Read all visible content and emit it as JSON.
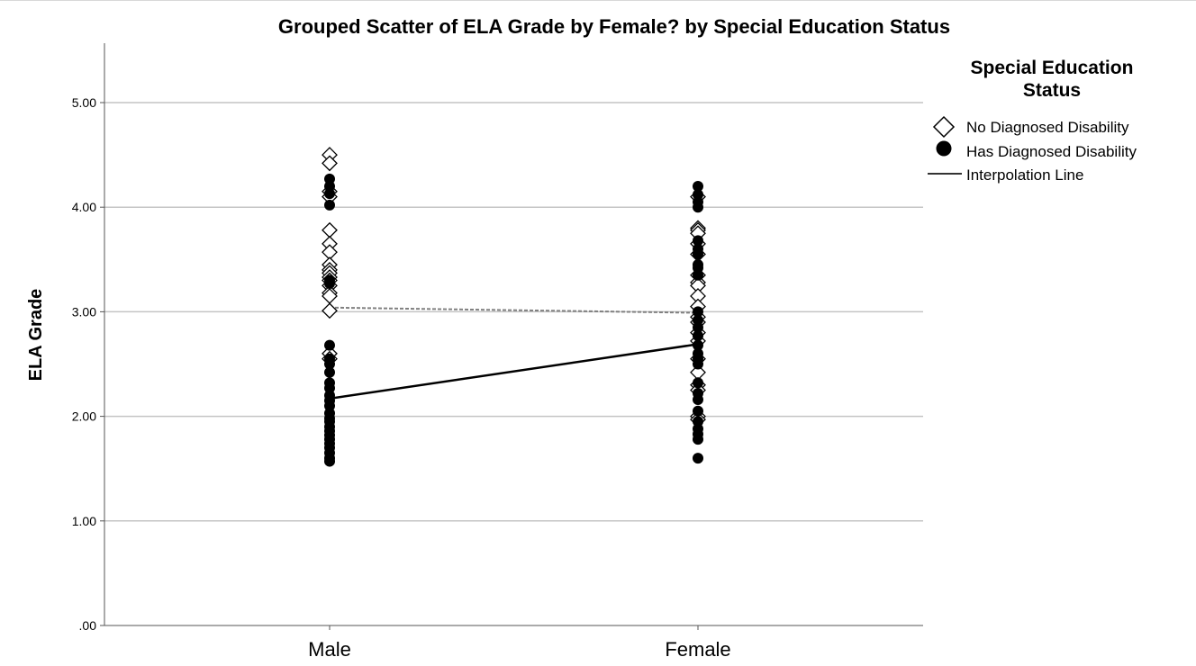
{
  "chart_data": {
    "type": "scatter",
    "title": "Grouped Scatter of ELA Grade by Female? by Special Education Status",
    "xlabel": "",
    "ylabel": "ELA Grade",
    "categories": [
      "Male",
      "Female"
    ],
    "ylim": [
      0,
      5.6
    ],
    "yticks": [
      0,
      1,
      2,
      3,
      4,
      5
    ],
    "ytick_labels": [
      ".00",
      "1.00",
      "2.00",
      "3.00",
      "4.00",
      "5.00"
    ],
    "grid": "horizontal",
    "legend": {
      "title": "Special Education Status",
      "title_lines": [
        "Special Education",
        "Status"
      ],
      "placement": "right",
      "entries": [
        "No Diagnosed Disability",
        "Has Diagnosed Disability",
        "Interpolation Line"
      ]
    },
    "series": [
      {
        "name": "No Diagnosed Disability",
        "marker": "diamond-open",
        "color": "#000000",
        "points": [
          {
            "x": "Male",
            "y": [
              4.5,
              4.42,
              4.15,
              4.1,
              3.78,
              3.65,
              3.57,
              3.45,
              3.4,
              3.37,
              3.33,
              3.3,
              3.25,
              3.18,
              3.15,
              3.01,
              2.6,
              2.55
            ]
          },
          {
            "x": "Female",
            "y": [
              4.1,
              3.8,
              3.78,
              3.75,
              3.65,
              3.55,
              3.35,
              3.28,
              3.25,
              3.15,
              3.05,
              2.95,
              2.9,
              2.8,
              2.72,
              2.55,
              2.42,
              2.3,
              2.25,
              2.0,
              1.97
            ]
          }
        ],
        "means": [
          3.04,
          2.99
        ],
        "line_style": "dashed",
        "line_color": "#808080"
      },
      {
        "name": "Has Diagnosed Disability",
        "marker": "circle-filled",
        "color": "#000000",
        "points": [
          {
            "x": "Male",
            "y": [
              4.27,
              4.2,
              4.13,
              4.02,
              3.3,
              3.27,
              2.68,
              2.55,
              2.5,
              2.42,
              2.32,
              2.27,
              2.2,
              2.15,
              2.1,
              2.03,
              1.98,
              1.95,
              1.9,
              1.86,
              1.82,
              1.78,
              1.74,
              1.7,
              1.65,
              1.6,
              1.57
            ]
          },
          {
            "x": "Female",
            "y": [
              4.2,
              4.12,
              4.05,
              4.0,
              3.68,
              3.6,
              3.55,
              3.45,
              3.42,
              3.35,
              3.0,
              2.92,
              2.85,
              2.77,
              2.68,
              2.6,
              2.55,
              2.5,
              2.32,
              2.22,
              2.16,
              2.05,
              1.95,
              1.88,
              1.83,
              1.78,
              1.6
            ]
          }
        ],
        "means": [
          2.17,
          2.69
        ],
        "line_style": "solid",
        "line_color": "#000000"
      }
    ]
  }
}
